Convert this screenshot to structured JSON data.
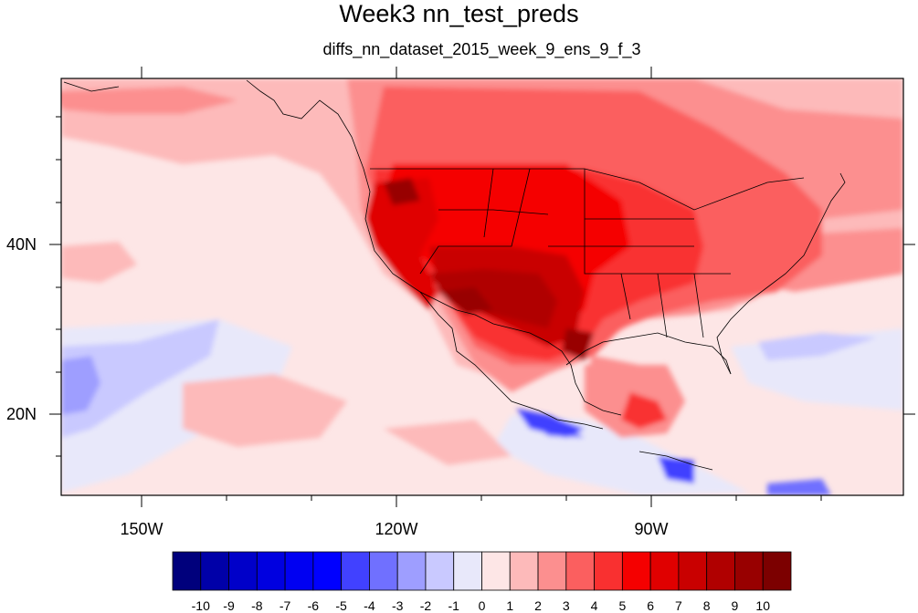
{
  "title": "Week3 nn_test_preds",
  "subtitle": "diffs_nn_dataset_2015_week_9_ens_9_f_3",
  "lon_labels": [
    "150W",
    "120W",
    "90W"
  ],
  "lat_labels": [
    "40N",
    "20N"
  ],
  "colorbar": {
    "labels": [
      "-10",
      "-9",
      "-8",
      "-7",
      "-6",
      "-5",
      "-4",
      "-3",
      "-2",
      "-1",
      "0",
      "1",
      "2",
      "3",
      "4",
      "5",
      "6",
      "7",
      "8",
      "9",
      "10"
    ],
    "colors": [
      "#00007c",
      "#0000a8",
      "#0000c9",
      "#0000e0",
      "#0000f2",
      "#0000ff",
      "#4141ff",
      "#7070ff",
      "#9e9eff",
      "#c9c9ff",
      "#e8e8fa",
      "#fde6e6",
      "#fdbaba",
      "#fc8f8f",
      "#fb5f5f",
      "#f93030",
      "#f50000",
      "#e00000",
      "#c90000",
      "#b00000",
      "#980000",
      "#7c0000"
    ]
  }
}
